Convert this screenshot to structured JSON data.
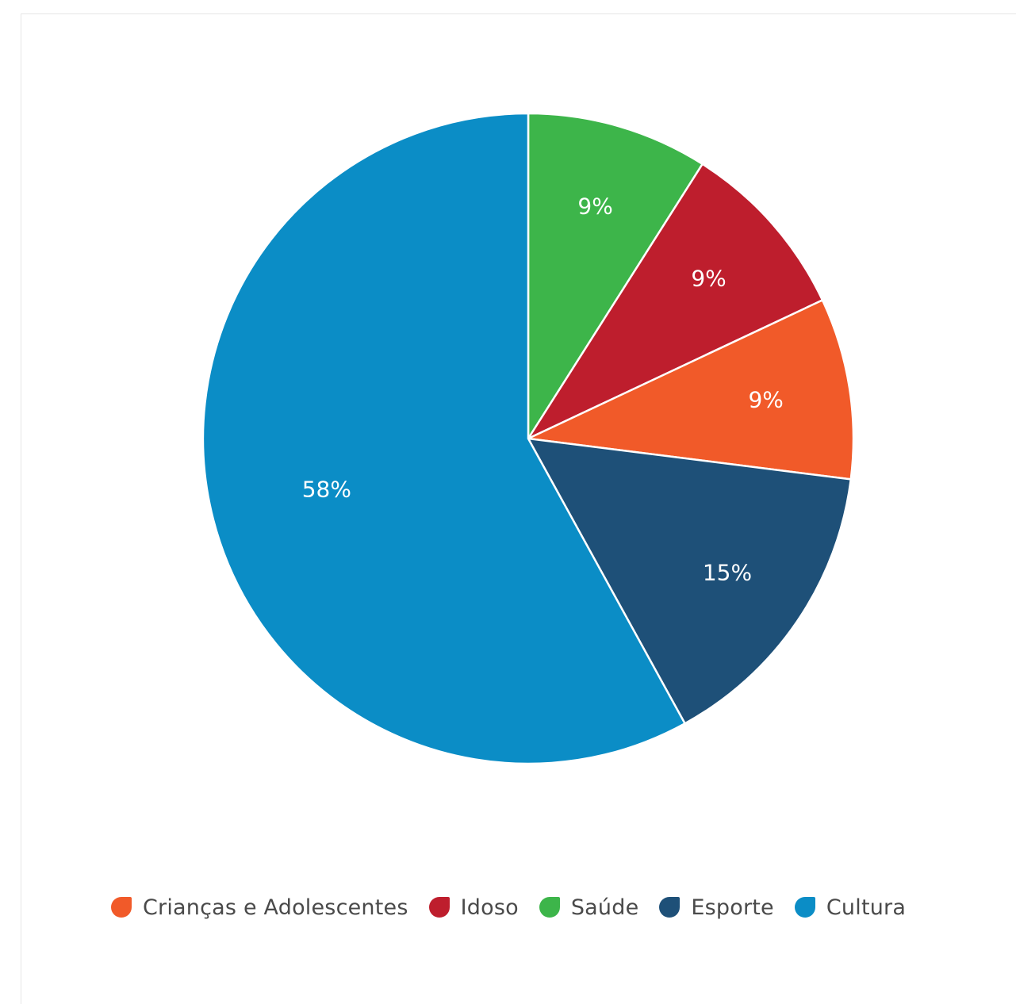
{
  "chart_data": {
    "type": "pie",
    "title": "",
    "start": "12 o'clock, clockwise",
    "slices": [
      {
        "name": "Saúde",
        "value": 9,
        "label": "9%",
        "color": "#3db54a"
      },
      {
        "name": "Idoso",
        "value": 9,
        "label": "9%",
        "color": "#be1e2d"
      },
      {
        "name": "Crianças e Adolescentes",
        "value": 9,
        "label": "9%",
        "color": "#f15a29"
      },
      {
        "name": "Esporte",
        "value": 15,
        "label": "15%",
        "color": "#1e5078"
      },
      {
        "name": "Cultura",
        "value": 58,
        "label": "58%",
        "color": "#0b8dc6"
      }
    ],
    "legend_position": "bottom",
    "legend": [
      {
        "name": "Crianças e Adolescentes",
        "color": "#f15a29"
      },
      {
        "name": "Idoso",
        "color": "#be1e2d"
      },
      {
        "name": "Saúde",
        "color": "#3db54a"
      },
      {
        "name": "Esporte",
        "color": "#1e5078"
      },
      {
        "name": "Cultura",
        "color": "#0b8dc6"
      }
    ]
  }
}
